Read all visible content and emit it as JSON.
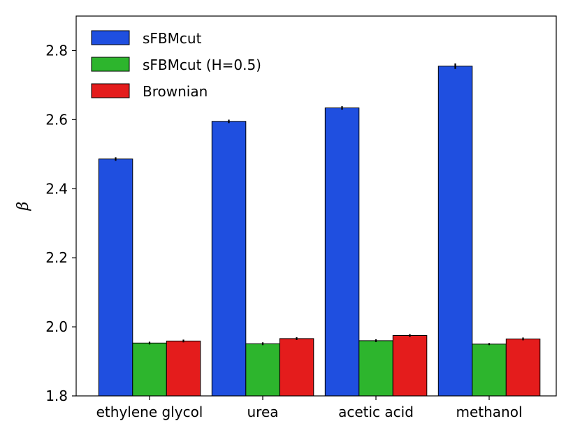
{
  "chart_data": {
    "type": "bar",
    "title": "",
    "xlabel": "",
    "ylabel": "β",
    "ylim": [
      1.8,
      2.9
    ],
    "yticks": [
      "1.8",
      "2.0",
      "2.2",
      "2.4",
      "2.6",
      "2.8"
    ],
    "categories": [
      "ethylene glycol",
      "urea",
      "acetic acid",
      "methanol"
    ],
    "legend_position": "top-left",
    "grid": false,
    "series": [
      {
        "name": "sFBMcut",
        "color": "#1f4fe0",
        "values": [
          2.486,
          2.595,
          2.634,
          2.755
        ],
        "errors": [
          0.005,
          0.005,
          0.005,
          0.008
        ]
      },
      {
        "name": "sFBMcut (H=0.5)",
        "color": "#2db52d",
        "values": [
          1.953,
          1.951,
          1.96,
          1.95
        ],
        "errors": [
          0.004,
          0.004,
          0.004,
          0.003
        ]
      },
      {
        "name": "Brownian",
        "color": "#e41c1c",
        "values": [
          1.959,
          1.966,
          1.975,
          1.965
        ],
        "errors": [
          0.004,
          0.004,
          0.004,
          0.004
        ]
      }
    ]
  }
}
